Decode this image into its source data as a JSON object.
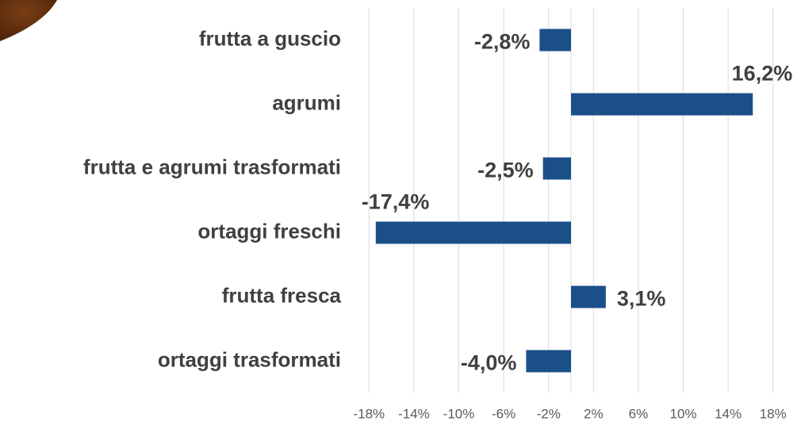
{
  "chart_data": {
    "type": "barh",
    "categories": [
      "frutta a guscio",
      "agrumi",
      "frutta e agrumi trasformati",
      "ortaggi freschi",
      "frutta fresca",
      "ortaggi trasformati"
    ],
    "values": [
      -2.8,
      16.2,
      -2.5,
      -17.4,
      3.1,
      -4.0
    ],
    "value_labels": [
      "-2,8%",
      "16,2%",
      "-2,5%",
      "-17,4%",
      "3,1%",
      "-4,0%"
    ],
    "color": "#1b4f8a",
    "xlim": [
      -20,
      20
    ],
    "xticks": [
      {
        "value": -18,
        "label": "-18%"
      },
      {
        "value": -14,
        "label": "-14%"
      },
      {
        "value": -10,
        "label": "-10%"
      },
      {
        "value": -6,
        "label": "-6%"
      },
      {
        "value": -2,
        "label": "-2%"
      },
      {
        "value": 2,
        "label": "2%"
      },
      {
        "value": 6,
        "label": "6%"
      },
      {
        "value": 10,
        "label": "10%"
      },
      {
        "value": 14,
        "label": "14%"
      },
      {
        "value": 18,
        "label": "18%"
      }
    ],
    "grid": true
  }
}
